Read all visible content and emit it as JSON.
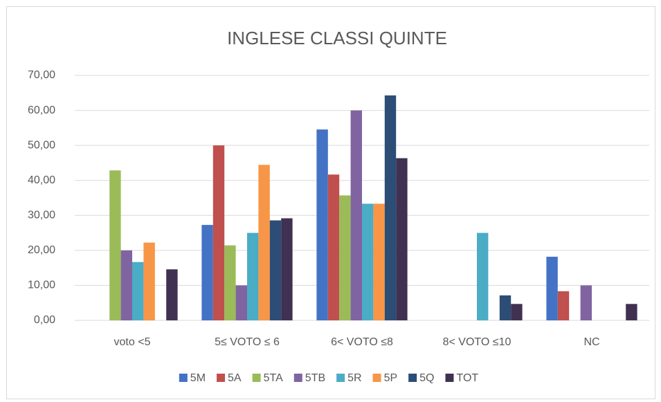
{
  "chart_data": {
    "type": "bar",
    "title": "INGLESE CLASSI QUINTE",
    "categories": [
      "voto <5",
      "5≤ VOTO ≤ 6",
      "6< VOTO ≤8",
      "8< VOTO ≤10",
      "NC"
    ],
    "series": [
      {
        "name": "5M",
        "color": "#4472c4",
        "values": [
          0,
          27.27,
          54.55,
          0,
          18.18
        ]
      },
      {
        "name": "5A",
        "color": "#c0504d",
        "values": [
          0,
          50,
          41.67,
          0,
          8.33
        ]
      },
      {
        "name": "5TA",
        "color": "#9bbb59",
        "values": [
          42.86,
          21.43,
          35.71,
          0,
          0
        ]
      },
      {
        "name": "5TB",
        "color": "#8064a2",
        "values": [
          20,
          10,
          60,
          0,
          10
        ]
      },
      {
        "name": "5R",
        "color": "#4bacc6",
        "values": [
          16.67,
          25,
          33.33,
          25,
          0
        ]
      },
      {
        "name": "5P",
        "color": "#f79646",
        "values": [
          22.22,
          44.44,
          33.33,
          0,
          0
        ]
      },
      {
        "name": "5Q",
        "color": "#2c4d75",
        "values": [
          0,
          28.57,
          64.29,
          7.14,
          0
        ]
      },
      {
        "name": "TOT",
        "color": "#403152",
        "values": [
          14.58,
          29.17,
          46.35,
          4.69,
          4.69
        ]
      }
    ],
    "ylim": [
      0,
      70
    ],
    "yticks": [
      {
        "value": 0,
        "label": "0,00"
      },
      {
        "value": 10,
        "label": "10,00"
      },
      {
        "value": 20,
        "label": "20,00"
      },
      {
        "value": 30,
        "label": "30,00"
      },
      {
        "value": 40,
        "label": "40,00"
      },
      {
        "value": 50,
        "label": "50,00"
      },
      {
        "value": 60,
        "label": "60,00"
      },
      {
        "value": 70,
        "label": "70,00"
      }
    ],
    "grid": true,
    "legend": "bottom"
  }
}
